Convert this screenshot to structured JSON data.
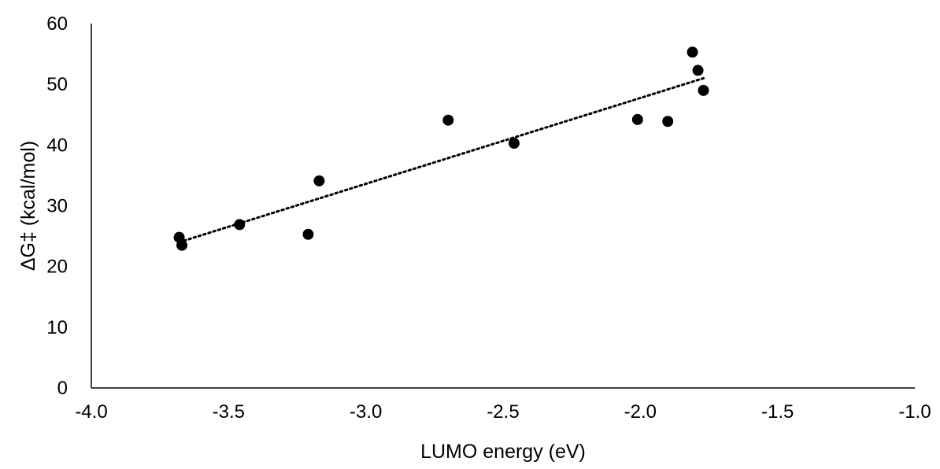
{
  "chart_data": {
    "type": "scatter",
    "title": "",
    "xlabel": "LUMO energy (eV)",
    "ylabel": "ΔG‡ (kcal/mol)",
    "xlim": [
      -4.0,
      -1.0
    ],
    "ylim": [
      0,
      60
    ],
    "x_ticks": [
      -4.0,
      -3.5,
      -3.0,
      -2.5,
      -2.0,
      -1.5,
      -1.0
    ],
    "x_tick_labels": [
      "-4.0",
      "-3.5",
      "-3.0",
      "-2.5",
      "-2.0",
      "-1.5",
      "-1.0"
    ],
    "y_ticks": [
      0,
      10,
      20,
      30,
      40,
      50,
      60
    ],
    "y_tick_labels": [
      "0",
      "10",
      "20",
      "30",
      "40",
      "50",
      "60"
    ],
    "grid": false,
    "legend": "none",
    "series": [
      {
        "x": [
          -3.68,
          -3.67,
          -3.46,
          -3.21,
          -3.17,
          -2.7,
          -2.46,
          -2.01,
          -1.9,
          -1.81,
          -1.79,
          -1.77
        ],
        "y": [
          24.8,
          23.5,
          26.9,
          25.3,
          34.1,
          44.1,
          40.3,
          44.2,
          43.9,
          55.3,
          52.3,
          49.0
        ],
        "color": "#000000"
      }
    ],
    "trendline": {
      "type": "linear",
      "style": "dotted",
      "color": "#000000",
      "x_start": -3.68,
      "y_start": 24.0,
      "x_end": -1.77,
      "y_end": 51.0
    }
  }
}
